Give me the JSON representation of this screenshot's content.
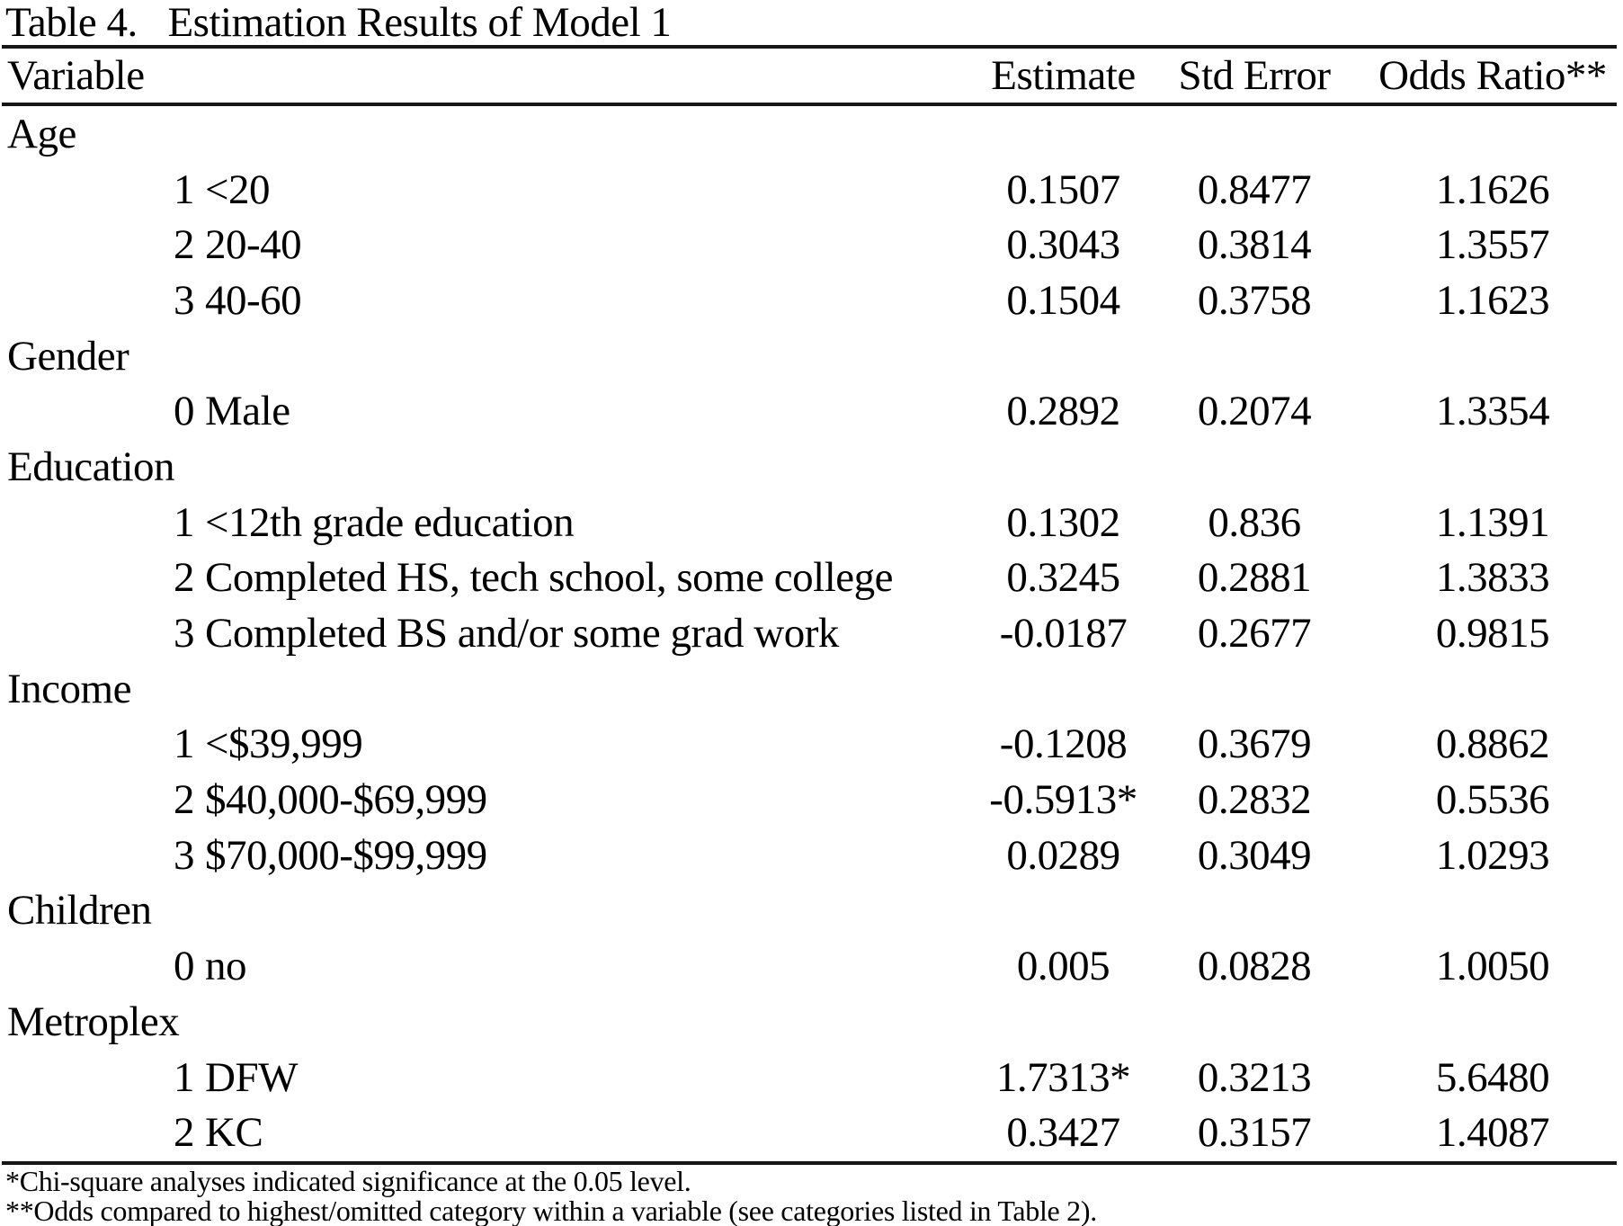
{
  "title": "Table 4.   Estimation Results of Model 1",
  "columns": {
    "variable": "Variable",
    "estimate": "Estimate",
    "std_error": "Std Error",
    "odds_ratio": "Odds Ratio**"
  },
  "sections": [
    {
      "name": "Age",
      "rows": [
        {
          "code": "1",
          "label": "<20",
          "estimate": "0.1507",
          "std_error": "0.8477",
          "odds_ratio": "1.1626"
        },
        {
          "code": "2",
          "label": "20-40",
          "estimate": "0.3043",
          "std_error": "0.3814",
          "odds_ratio": "1.3557"
        },
        {
          "code": "3",
          "label": "40-60",
          "estimate": "0.1504",
          "std_error": "0.3758",
          "odds_ratio": "1.1623"
        }
      ]
    },
    {
      "name": "Gender",
      "rows": [
        {
          "code": "0",
          "label": "Male",
          "estimate": "0.2892",
          "std_error": "0.2074",
          "odds_ratio": "1.3354"
        }
      ]
    },
    {
      "name": "Education",
      "rows": [
        {
          "code": "1",
          "label": "<12th grade education",
          "estimate": "0.1302",
          "std_error": "0.836",
          "odds_ratio": "1.1391"
        },
        {
          "code": "2",
          "label": "Completed HS, tech school, some college",
          "estimate": "0.3245",
          "std_error": "0.2881",
          "odds_ratio": "1.3833"
        },
        {
          "code": "3",
          "label": "Completed BS and/or some grad work",
          "estimate": "-0.0187",
          "std_error": "0.2677",
          "odds_ratio": "0.9815"
        }
      ]
    },
    {
      "name": "Income",
      "rows": [
        {
          "code": "1",
          "label": "<$39,999",
          "estimate": "-0.1208",
          "std_error": "0.3679",
          "odds_ratio": "0.8862"
        },
        {
          "code": "2",
          "label": "$40,000-$69,999",
          "estimate": "-0.5913*",
          "std_error": "0.2832",
          "odds_ratio": "0.5536"
        },
        {
          "code": "3",
          "label": "$70,000-$99,999",
          "estimate": "0.0289",
          "std_error": "0.3049",
          "odds_ratio": "1.0293"
        }
      ]
    },
    {
      "name": "Children",
      "rows": [
        {
          "code": "0",
          "label": "no",
          "estimate": "0.005",
          "std_error": "0.0828",
          "odds_ratio": "1.0050"
        }
      ]
    },
    {
      "name": "Metroplex",
      "rows": [
        {
          "code": "1",
          "label": "DFW",
          "estimate": "1.7313*",
          "std_error": "0.3213",
          "odds_ratio": "5.6480"
        },
        {
          "code": "2",
          "label": "KC",
          "estimate": "0.3427",
          "std_error": "0.3157",
          "odds_ratio": "1.4087"
        }
      ]
    }
  ],
  "footnotes": [
    "*Chi-square analyses indicated significance at the 0.05 level.",
    "**Odds compared to highest/omitted category within a variable (see categories listed in Table 2)."
  ]
}
